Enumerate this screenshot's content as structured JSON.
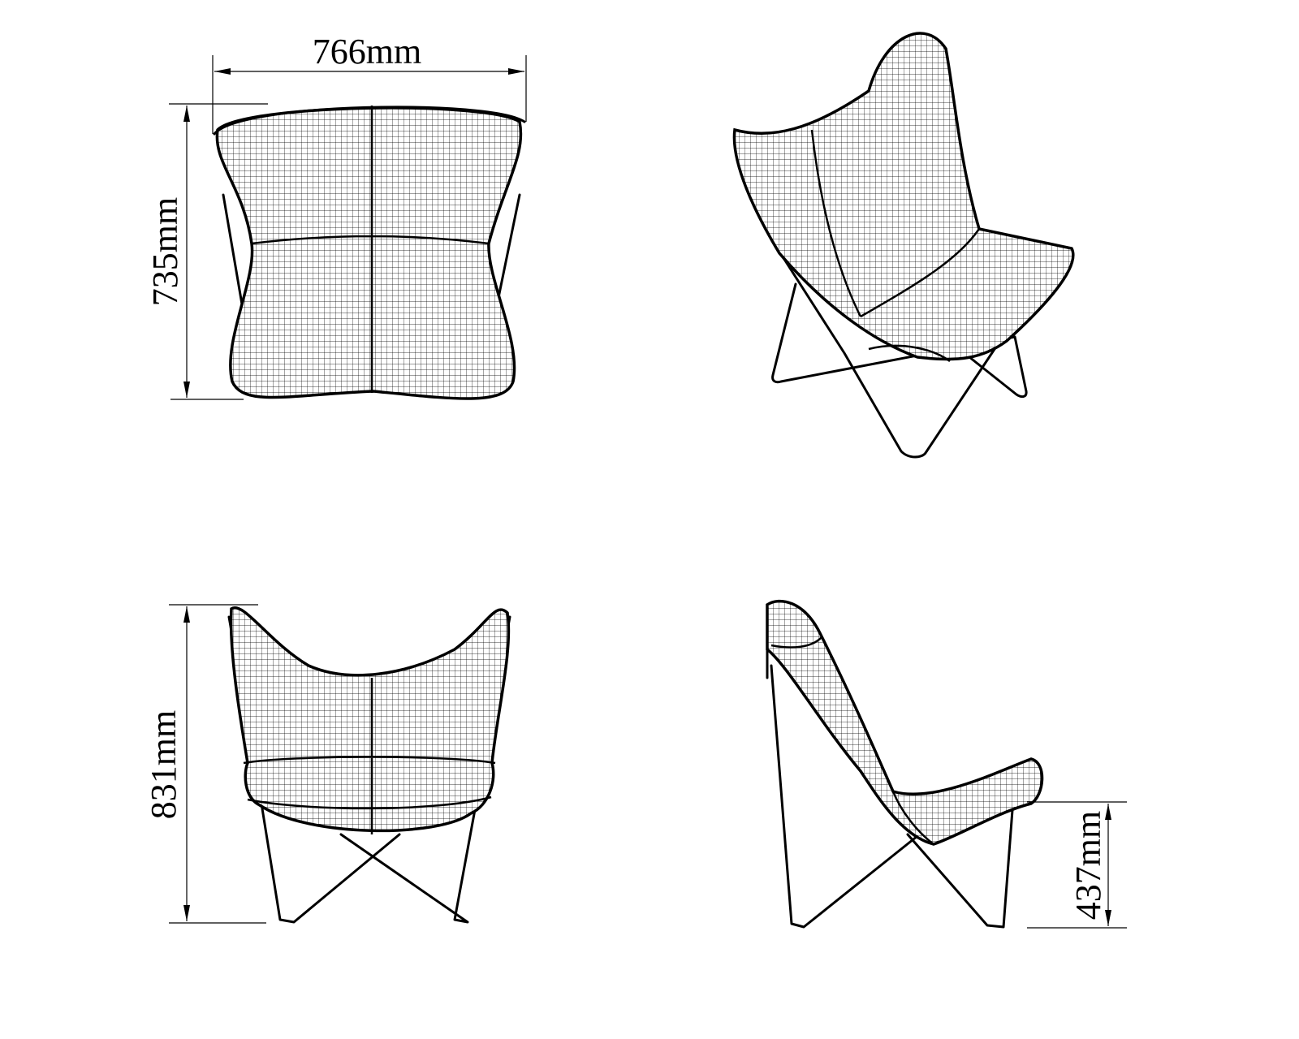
{
  "views": [
    {
      "name": "top-view",
      "dimensions": [
        {
          "label": "766mm",
          "orientation": "horizontal"
        },
        {
          "label": "735mm",
          "orientation": "vertical"
        }
      ]
    },
    {
      "name": "perspective-view",
      "dimensions": []
    },
    {
      "name": "front-view",
      "dimensions": [
        {
          "label": "831mm",
          "orientation": "vertical"
        }
      ]
    },
    {
      "name": "side-view",
      "dimensions": [
        {
          "label": "437mm",
          "orientation": "vertical"
        }
      ]
    }
  ],
  "dimensions": {
    "width": "766mm",
    "depth": "735mm",
    "height": "831mm",
    "seat_height": "437mm"
  },
  "colors": {
    "line": "#000000",
    "background": "#ffffff"
  }
}
